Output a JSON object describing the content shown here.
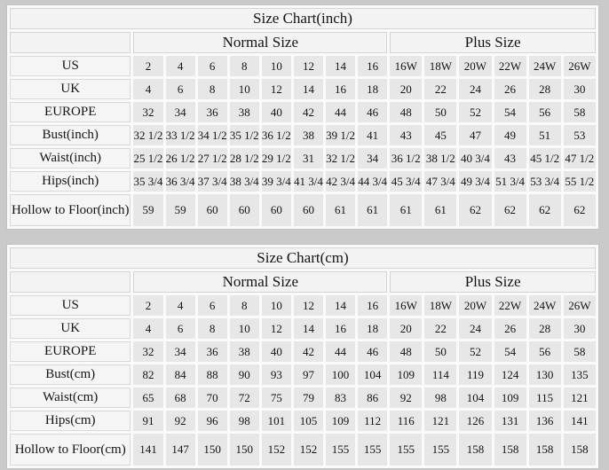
{
  "page": {
    "background_color": "#cacaca",
    "cell_color": "#e7e7e7",
    "header_cell_color": "#f3f3f3",
    "grid_gap_color": "#fafafa",
    "text_color": "#141414"
  },
  "tables": [
    {
      "title": "Size Chart(inch)",
      "column_groups": [
        {
          "label": "Normal Size",
          "span": 8
        },
        {
          "label": "Plus Size",
          "span": 6
        }
      ],
      "rows": [
        {
          "label": "US",
          "normal": [
            "2",
            "4",
            "6",
            "8",
            "10",
            "12",
            "14",
            "16"
          ],
          "plus": [
            "16W",
            "18W",
            "20W",
            "22W",
            "24W",
            "26W"
          ]
        },
        {
          "label": "UK",
          "normal": [
            "4",
            "6",
            "8",
            "10",
            "12",
            "14",
            "16",
            "18"
          ],
          "plus": [
            "20",
            "22",
            "24",
            "26",
            "28",
            "30"
          ]
        },
        {
          "label": "EUROPE",
          "normal": [
            "32",
            "34",
            "36",
            "38",
            "40",
            "42",
            "44",
            "46"
          ],
          "plus": [
            "48",
            "50",
            "52",
            "54",
            "56",
            "58"
          ]
        },
        {
          "label": "Bust(inch)",
          "normal": [
            "32 1/2",
            "33 1/2",
            "34 1/2",
            "35 1/2",
            "36 1/2",
            "38",
            "39 1/2",
            "41"
          ],
          "plus": [
            "43",
            "45",
            "47",
            "49",
            "51",
            "53"
          ]
        },
        {
          "label": "Waist(inch)",
          "normal": [
            "25 1/2",
            "26 1/2",
            "27 1/2",
            "28 1/2",
            "29 1/2",
            "31",
            "32 1/2",
            "34"
          ],
          "plus": [
            "36 1/2",
            "38 1/2",
            "40 3/4",
            "43",
            "45 1/2",
            "47 1/2"
          ]
        },
        {
          "label": "Hips(inch)",
          "normal": [
            "35 3/4",
            "36 3/4",
            "37 3/4",
            "38 3/4",
            "39 3/4",
            "41 3/4",
            "42 3/4",
            "44 3/4"
          ],
          "plus": [
            "45 3/4",
            "47 3/4",
            "49 3/4",
            "51 3/4",
            "53 3/4",
            "55 1/2"
          ]
        },
        {
          "label": "Hollow to Floor(inch)",
          "normal": [
            "59",
            "59",
            "60",
            "60",
            "60",
            "60",
            "61",
            "61"
          ],
          "plus": [
            "61",
            "61",
            "62",
            "62",
            "62",
            "62"
          ]
        }
      ]
    },
    {
      "title": "Size Chart(cm)",
      "column_groups": [
        {
          "label": "Normal Size",
          "span": 8
        },
        {
          "label": "Plus Size",
          "span": 6
        }
      ],
      "rows": [
        {
          "label": "US",
          "normal": [
            "2",
            "4",
            "6",
            "8",
            "10",
            "12",
            "14",
            "16"
          ],
          "plus": [
            "16W",
            "18W",
            "20W",
            "22W",
            "24W",
            "26W"
          ]
        },
        {
          "label": "UK",
          "normal": [
            "4",
            "6",
            "8",
            "10",
            "12",
            "14",
            "16",
            "18"
          ],
          "plus": [
            "20",
            "22",
            "24",
            "26",
            "28",
            "30"
          ]
        },
        {
          "label": "EUROPE",
          "normal": [
            "32",
            "34",
            "36",
            "38",
            "40",
            "42",
            "44",
            "46"
          ],
          "plus": [
            "48",
            "50",
            "52",
            "54",
            "56",
            "58"
          ]
        },
        {
          "label": "Bust(cm)",
          "normal": [
            "82",
            "84",
            "88",
            "90",
            "93",
            "97",
            "100",
            "104"
          ],
          "plus": [
            "109",
            "114",
            "119",
            "124",
            "130",
            "135"
          ]
        },
        {
          "label": "Waist(cm)",
          "normal": [
            "65",
            "68",
            "70",
            "72",
            "75",
            "79",
            "83",
            "86"
          ],
          "plus": [
            "92",
            "98",
            "104",
            "109",
            "115",
            "121"
          ]
        },
        {
          "label": "Hips(cm)",
          "normal": [
            "91",
            "92",
            "96",
            "98",
            "101",
            "105",
            "109",
            "112"
          ],
          "plus": [
            "116",
            "121",
            "126",
            "131",
            "136",
            "141"
          ]
        },
        {
          "label": "Hollow to Floor(cm)",
          "normal": [
            "141",
            "147",
            "150",
            "150",
            "152",
            "152",
            "155",
            "155"
          ],
          "plus": [
            "155",
            "155",
            "158",
            "158",
            "158",
            "158"
          ]
        }
      ]
    }
  ]
}
